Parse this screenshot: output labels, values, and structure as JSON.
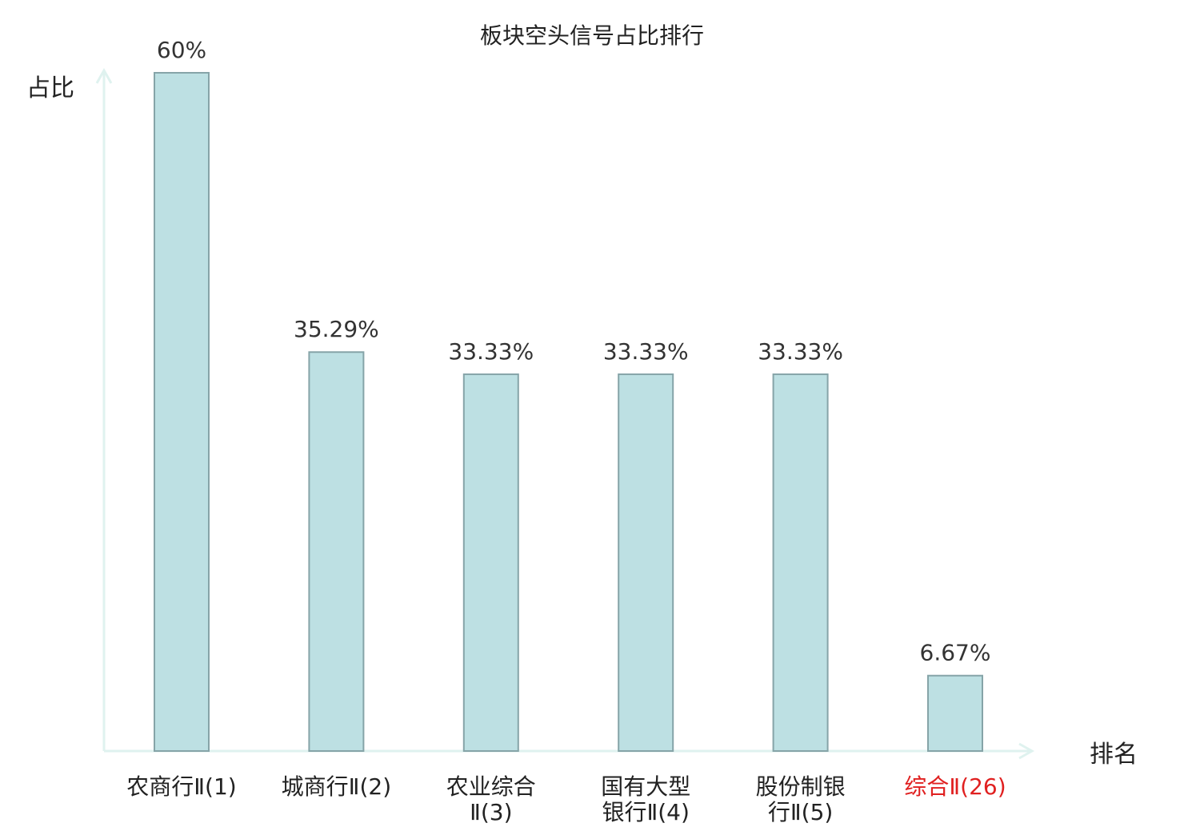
{
  "chart_data": {
    "type": "bar",
    "title": "板块空头信号占比排行",
    "ylabel": "占比",
    "xlabel": "排名",
    "categories": [
      [
        "农商行Ⅱ(1)"
      ],
      [
        "城商行Ⅱ(2)"
      ],
      [
        "农业综合",
        "Ⅱ(3)"
      ],
      [
        "国有大型",
        "银行Ⅱ(4)"
      ],
      [
        "股份制银",
        "行Ⅱ(5)"
      ],
      [
        "综合Ⅱ(26)"
      ]
    ],
    "highlight_index": 5,
    "values": [
      60,
      35.29,
      33.33,
      33.33,
      33.33,
      6.67
    ],
    "value_labels": [
      "60%",
      "35.29%",
      "33.33%",
      "33.33%",
      "33.33%",
      "6.67%"
    ],
    "ylim": [
      0,
      60
    ],
    "grid": false,
    "legend": "none",
    "colors": {
      "bar_fill": "#bde0e3",
      "bar_stroke": "#86a4a8",
      "axis": "#dff2ef",
      "text": "#222222",
      "value_text": "#333333",
      "highlight_text": "#e02020"
    }
  }
}
